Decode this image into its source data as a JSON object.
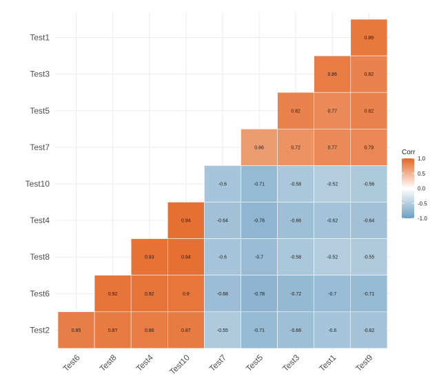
{
  "chart_data": {
    "type": "heatmap",
    "title": "",
    "xlabel": "",
    "ylabel": "",
    "x_categories": [
      "Test6",
      "Test8",
      "Test4",
      "Test10",
      "Test7",
      "Test5",
      "Test3",
      "Test1",
      "Test9"
    ],
    "y_categories": [
      "Test1",
      "Test3",
      "Test5",
      "Test7",
      "Test10",
      "Test4",
      "Test8",
      "Test6",
      "Test2"
    ],
    "cells": [
      {
        "x": "Test9",
        "y": "Test1",
        "value": 0.89,
        "label": "0.89"
      },
      {
        "x": "Test1",
        "y": "Test3",
        "value": 0.86,
        "label": "0.86"
      },
      {
        "x": "Test9",
        "y": "Test3",
        "value": 0.82,
        "label": "0.82"
      },
      {
        "x": "Test3",
        "y": "Test5",
        "value": 0.82,
        "label": "0.82"
      },
      {
        "x": "Test1",
        "y": "Test5",
        "value": 0.77,
        "label": "0.77"
      },
      {
        "x": "Test9",
        "y": "Test5",
        "value": 0.82,
        "label": "0.82"
      },
      {
        "x": "Test5",
        "y": "Test7",
        "value": 0.66,
        "label": "0.66"
      },
      {
        "x": "Test3",
        "y": "Test7",
        "value": 0.72,
        "label": "0.72"
      },
      {
        "x": "Test1",
        "y": "Test7",
        "value": 0.77,
        "label": "0.77"
      },
      {
        "x": "Test9",
        "y": "Test7",
        "value": 0.79,
        "label": "0.79"
      },
      {
        "x": "Test7",
        "y": "Test10",
        "value": -0.6,
        "label": "-0.6"
      },
      {
        "x": "Test5",
        "y": "Test10",
        "value": -0.71,
        "label": "-0.71"
      },
      {
        "x": "Test3",
        "y": "Test10",
        "value": -0.58,
        "label": "-0.58"
      },
      {
        "x": "Test1",
        "y": "Test10",
        "value": -0.52,
        "label": "-0.52"
      },
      {
        "x": "Test9",
        "y": "Test10",
        "value": -0.56,
        "label": "-0.56"
      },
      {
        "x": "Test10",
        "y": "Test4",
        "value": 0.94,
        "label": "0.94"
      },
      {
        "x": "Test7",
        "y": "Test4",
        "value": -0.64,
        "label": "-0.64"
      },
      {
        "x": "Test5",
        "y": "Test4",
        "value": -0.76,
        "label": "-0.76"
      },
      {
        "x": "Test3",
        "y": "Test4",
        "value": -0.66,
        "label": "-0.66"
      },
      {
        "x": "Test1",
        "y": "Test4",
        "value": -0.62,
        "label": "-0.62"
      },
      {
        "x": "Test9",
        "y": "Test4",
        "value": -0.64,
        "label": "-0.64"
      },
      {
        "x": "Test4",
        "y": "Test8",
        "value": 0.93,
        "label": "0.93"
      },
      {
        "x": "Test10",
        "y": "Test8",
        "value": 0.94,
        "label": "0.94"
      },
      {
        "x": "Test7",
        "y": "Test8",
        "value": -0.6,
        "label": "-0.6"
      },
      {
        "x": "Test5",
        "y": "Test8",
        "value": -0.7,
        "label": "-0.7"
      },
      {
        "x": "Test3",
        "y": "Test8",
        "value": -0.58,
        "label": "-0.58"
      },
      {
        "x": "Test1",
        "y": "Test8",
        "value": -0.52,
        "label": "-0.52"
      },
      {
        "x": "Test9",
        "y": "Test8",
        "value": -0.55,
        "label": "-0.55"
      },
      {
        "x": "Test8",
        "y": "Test6",
        "value": 0.92,
        "label": "0.92"
      },
      {
        "x": "Test4",
        "y": "Test6",
        "value": 0.92,
        "label": "0.92"
      },
      {
        "x": "Test10",
        "y": "Test6",
        "value": 0.9,
        "label": "0.9"
      },
      {
        "x": "Test7",
        "y": "Test6",
        "value": -0.68,
        "label": "-0.68"
      },
      {
        "x": "Test5",
        "y": "Test6",
        "value": -0.78,
        "label": "-0.78"
      },
      {
        "x": "Test3",
        "y": "Test6",
        "value": -0.72,
        "label": "-0.72"
      },
      {
        "x": "Test1",
        "y": "Test6",
        "value": -0.7,
        "label": "-0.7"
      },
      {
        "x": "Test9",
        "y": "Test6",
        "value": -0.71,
        "label": "-0.71"
      },
      {
        "x": "Test6",
        "y": "Test2",
        "value": 0.85,
        "label": "0.85"
      },
      {
        "x": "Test8",
        "y": "Test2",
        "value": 0.87,
        "label": "0.87"
      },
      {
        "x": "Test4",
        "y": "Test2",
        "value": 0.86,
        "label": "0.86"
      },
      {
        "x": "Test10",
        "y": "Test2",
        "value": 0.87,
        "label": "0.87"
      },
      {
        "x": "Test7",
        "y": "Test2",
        "value": -0.55,
        "label": "-0.55"
      },
      {
        "x": "Test5",
        "y": "Test2",
        "value": -0.71,
        "label": "-0.71"
      },
      {
        "x": "Test3",
        "y": "Test2",
        "value": -0.66,
        "label": "-0.66"
      },
      {
        "x": "Test1",
        "y": "Test2",
        "value": -0.6,
        "label": "-0.6"
      },
      {
        "x": "Test9",
        "y": "Test2",
        "value": -0.62,
        "label": "-0.62"
      }
    ],
    "legend": {
      "title": "Corr",
      "placement": "right",
      "ticks": [
        {
          "value": 1.0,
          "label": "1.0"
        },
        {
          "value": 0.5,
          "label": "0.5"
        },
        {
          "value": 0.0,
          "label": "0.0"
        },
        {
          "value": -0.5,
          "label": "-0.5"
        },
        {
          "value": -1.0,
          "label": "-1.0"
        }
      ],
      "range": [
        -1.0,
        1.0
      ]
    },
    "colors": {
      "low": "#6d9ec1",
      "mid": "#ffffff",
      "high": "#e46726"
    },
    "grid": true
  }
}
